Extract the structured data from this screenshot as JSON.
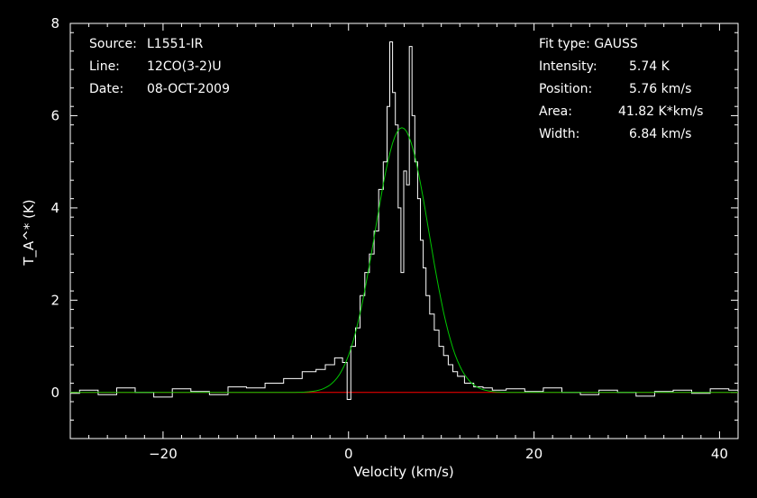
{
  "colors": {
    "background": "#000000",
    "frame": "#ffffff",
    "spectrum": "#ffffff",
    "fit": "#00c800",
    "baseline": "#ff0000"
  },
  "info": {
    "source_label": "Source:",
    "source": "L1551-IR",
    "line_label": "Line:",
    "line": "12CO(3-2)U",
    "date_label": "Date:",
    "date": "08-OCT-2009",
    "fit_type_label": "Fit type:",
    "fit_type": "GAUSS",
    "intensity_label": "Intensity:",
    "intensity": "5.74 K",
    "position_label": "Position:",
    "position": "5.76 km/s",
    "area_label": "Area:",
    "area": "41.82 K*km/s",
    "width_label": "Width:",
    "width": "6.84 km/s"
  },
  "chart_data": {
    "type": "line",
    "xlabel": "Velocity (km/s)",
    "ylabel": "T_A^* (K)",
    "xlim": [
      -30,
      42
    ],
    "ylim": [
      -1,
      8
    ],
    "xticks": [
      -20,
      0,
      20,
      40
    ],
    "yticks": [
      0,
      2,
      4,
      6,
      8
    ],
    "grid": false,
    "series": [
      {
        "role": "spectrum",
        "x": [
          -30,
          -28,
          -26,
          -24,
          -22,
          -20,
          -18,
          -16,
          -14,
          -12,
          -10,
          -8,
          -6,
          -4,
          -3,
          -2,
          -1,
          -0.3,
          0,
          0.5,
          1,
          1.5,
          2,
          2.5,
          3,
          3.5,
          4,
          4.3,
          4.6,
          4.9,
          5.2,
          5.5,
          5.8,
          6.1,
          6.4,
          6.7,
          7,
          7.3,
          7.6,
          7.9,
          8.2,
          8.5,
          9,
          9.5,
          10,
          10.5,
          11,
          11.5,
          12,
          13,
          14,
          15,
          16,
          18,
          20,
          22,
          24,
          26,
          28,
          30,
          32,
          34,
          36,
          38,
          40,
          42
        ],
        "y": [
          -0.02,
          0.05,
          -0.05,
          0.1,
          0,
          -0.1,
          0.08,
          0.02,
          -0.05,
          0.12,
          0.1,
          0.2,
          0.3,
          0.45,
          0.5,
          0.6,
          0.75,
          0.65,
          -0.15,
          1.0,
          1.4,
          2.1,
          2.6,
          3.0,
          3.5,
          4.4,
          5.0,
          6.2,
          7.6,
          6.5,
          5.8,
          4.0,
          2.6,
          4.8,
          4.5,
          7.5,
          6.0,
          5.0,
          4.2,
          3.3,
          2.7,
          2.1,
          1.7,
          1.35,
          1.0,
          0.8,
          0.6,
          0.45,
          0.35,
          0.2,
          0.12,
          0.1,
          0.05,
          0.08,
          0.02,
          0.1,
          0,
          -0.05,
          0.05,
          0,
          -0.08,
          0.02,
          0.05,
          -0.02,
          0.08,
          0.05
        ]
      },
      {
        "role": "fit",
        "model": "gaussian",
        "amplitude": 5.74,
        "center": 5.76,
        "fwhm": 6.84
      },
      {
        "role": "baseline",
        "x": [
          -30,
          42
        ],
        "y": [
          0,
          0
        ]
      }
    ]
  }
}
